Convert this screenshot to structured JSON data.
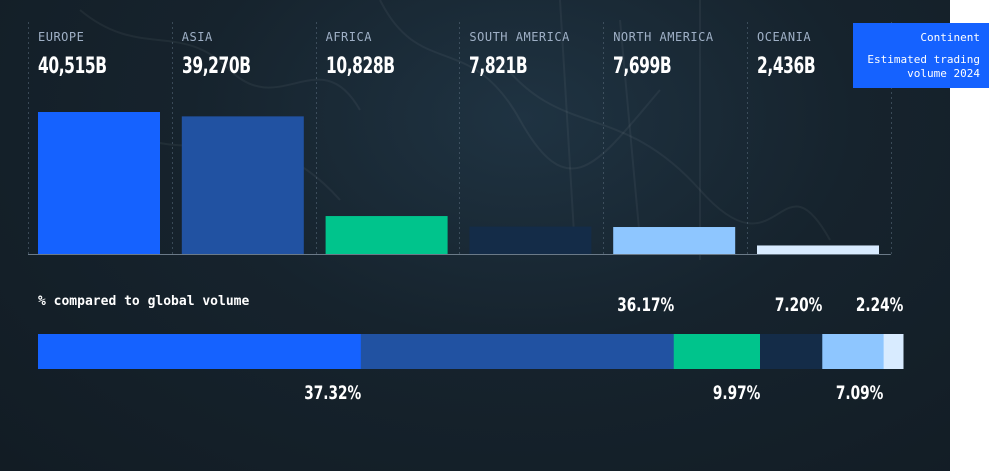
{
  "legend": {
    "title": "Continent",
    "subtitle": "Estimated trading volume 2024"
  },
  "bar_caption": "% compared to global volume",
  "colors": {
    "Europe": "#1562ff",
    "Asia": "#2152a2",
    "Africa": "#00c48c",
    "South America": "#142c48",
    "North America": "#8ec6ff",
    "Oceania": "#d8ebff"
  },
  "chart_data": [
    {
      "type": "bar",
      "categories": [
        "EUROPE",
        "ASIA",
        "AFRICA",
        "SOUTH AMERICA",
        "NORTH AMERICA",
        "OCEANIA"
      ],
      "values": [
        40515,
        39270,
        10828,
        7821,
        7699,
        2436
      ],
      "value_labels": [
        "40,515B",
        "39,270B",
        "10,828B",
        "7,821B",
        "7,699B",
        "2,436B"
      ],
      "title": "",
      "xlabel": "",
      "ylabel": "",
      "grid": false
    },
    {
      "type": "bar",
      "orientation": "horizontal-stacked",
      "title": "% compared to global volume",
      "categories": [
        "Europe",
        "Asia",
        "Africa",
        "South America",
        "North America",
        "Oceania"
      ],
      "values": [
        37.32,
        36.17,
        9.97,
        7.2,
        7.09,
        2.24
      ],
      "value_labels": [
        "37.32%",
        "36.17%",
        "9.97%",
        "7.20%",
        "7.09%",
        "2.24%"
      ],
      "label_positions": [
        "below",
        "above",
        "below",
        "above",
        "below",
        "above"
      ]
    }
  ]
}
